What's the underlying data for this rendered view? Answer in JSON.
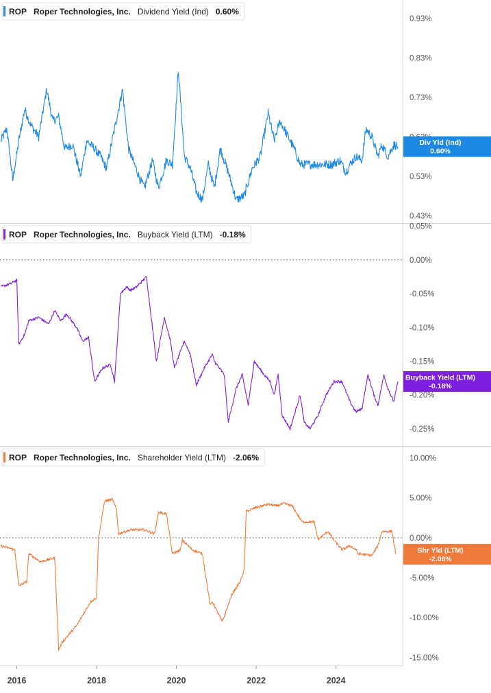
{
  "x_axis": {
    "tick_labels": [
      "2016",
      "2018",
      "2020",
      "2022",
      "2024"
    ],
    "tick_years": [
      2016,
      2018,
      2020,
      2022,
      2024
    ],
    "range_years": [
      2015.58,
      2025.67
    ]
  },
  "chart_data": [
    {
      "type": "line",
      "legend": {
        "ticker": "ROP",
        "company": "Roper Technologies, Inc.",
        "metric": "Dividend Yield (Ind)",
        "value": "0.60%"
      },
      "color": "#1E88E5",
      "ylim": [
        0.4114,
        0.9767
      ],
      "y_ticks": [
        0.93,
        0.83,
        0.73,
        0.63,
        0.53,
        0.43
      ],
      "y_tick_labels": [
        "0.93%",
        "0.83%",
        "0.73%",
        "0.63%",
        "0.53%",
        "0.43%"
      ],
      "zero_line": false,
      "end_badge": {
        "label": "Div Yld (Ind)",
        "value": "0.60%",
        "y": 0.605
      },
      "series": [
        {
          "x": [
            2015.6,
            2015.75,
            2015.9,
            2016.05,
            2016.2,
            2016.35,
            2016.55,
            2016.75,
            2016.9,
            2017.05,
            2017.2,
            2017.4,
            2017.6,
            2017.75,
            2017.95,
            2018.1,
            2018.25,
            2018.45,
            2018.65,
            2018.8,
            2018.95,
            2019.1,
            2019.2,
            2019.4,
            2019.55,
            2019.75,
            2019.9,
            2020.05,
            2020.2,
            2020.35,
            2020.5,
            2020.65,
            2020.8,
            2020.95,
            2021.1,
            2021.3,
            2021.5,
            2021.7,
            2021.9,
            2022.1,
            2022.3,
            2022.45,
            2022.6,
            2022.75,
            2022.95,
            2023.1,
            2023.3,
            2023.5,
            2023.7,
            2023.9,
            2024.1,
            2024.25,
            2024.35,
            2024.5,
            2024.65,
            2024.75,
            2024.9,
            2025.05,
            2025.15,
            2025.3,
            2025.45,
            2025.55
          ],
          "y": [
            0.62,
            0.65,
            0.52,
            0.62,
            0.7,
            0.66,
            0.63,
            0.75,
            0.67,
            0.68,
            0.6,
            0.61,
            0.53,
            0.62,
            0.6,
            0.58,
            0.55,
            0.65,
            0.75,
            0.6,
            0.56,
            0.52,
            0.5,
            0.57,
            0.5,
            0.57,
            0.56,
            0.8,
            0.58,
            0.55,
            0.49,
            0.47,
            0.56,
            0.5,
            0.6,
            0.54,
            0.47,
            0.48,
            0.55,
            0.58,
            0.69,
            0.62,
            0.67,
            0.64,
            0.6,
            0.56,
            0.56,
            0.56,
            0.56,
            0.56,
            0.57,
            0.54,
            0.56,
            0.58,
            0.57,
            0.65,
            0.63,
            0.58,
            0.61,
            0.58,
            0.61,
            0.605
          ]
        }
      ]
    },
    {
      "type": "line",
      "legend": {
        "ticker": "ROP",
        "company": "Roper Technologies, Inc.",
        "metric": "Buyback Yield (LTM)",
        "value": "-0.18%"
      },
      "color": "#7C1FE0",
      "ylim": [
        -0.2754,
        0.0546
      ],
      "y_ticks": [
        0.05,
        0.0,
        -0.05,
        -0.1,
        -0.15,
        -0.2,
        -0.25
      ],
      "y_tick_labels": [
        "0.05%",
        "0.00%",
        "-0.05%",
        "-0.10%",
        "-0.15%",
        "-0.20%",
        "-0.25%"
      ],
      "zero_line": true,
      "end_badge": {
        "label": "Buyback Yield (LTM)",
        "value": "-0.18%",
        "y": -0.18
      },
      "series": [
        {
          "x": [
            2015.6,
            2015.85,
            2016.0,
            2016.05,
            2016.2,
            2016.3,
            2016.55,
            2016.8,
            2016.95,
            2017.1,
            2017.25,
            2017.5,
            2017.65,
            2017.8,
            2017.95,
            2018.15,
            2018.35,
            2018.45,
            2018.6,
            2018.75,
            2018.85,
            2019.0,
            2019.25,
            2019.5,
            2019.7,
            2019.85,
            2019.95,
            2020.2,
            2020.35,
            2020.5,
            2020.7,
            2020.9,
            2020.95,
            2021.2,
            2021.3,
            2021.5,
            2021.65,
            2021.8,
            2021.95,
            2022.2,
            2022.35,
            2022.45,
            2022.55,
            2022.65,
            2022.85,
            2023.1,
            2023.2,
            2023.35,
            2023.55,
            2023.75,
            2023.95,
            2024.15,
            2024.35,
            2024.5,
            2024.65,
            2024.8,
            2024.95,
            2025.05,
            2025.2,
            2025.3,
            2025.45,
            2025.55
          ],
          "y": [
            -0.04,
            -0.035,
            -0.03,
            -0.125,
            -0.11,
            -0.09,
            -0.085,
            -0.095,
            -0.075,
            -0.09,
            -0.08,
            -0.1,
            -0.12,
            -0.115,
            -0.18,
            -0.16,
            -0.155,
            -0.18,
            -0.05,
            -0.04,
            -0.045,
            -0.04,
            -0.025,
            -0.15,
            -0.085,
            -0.12,
            -0.16,
            -0.12,
            -0.14,
            -0.185,
            -0.16,
            -0.14,
            -0.15,
            -0.17,
            -0.24,
            -0.19,
            -0.17,
            -0.215,
            -0.15,
            -0.17,
            -0.18,
            -0.2,
            -0.17,
            -0.23,
            -0.25,
            -0.2,
            -0.24,
            -0.25,
            -0.23,
            -0.2,
            -0.18,
            -0.18,
            -0.21,
            -0.225,
            -0.22,
            -0.17,
            -0.2,
            -0.215,
            -0.17,
            -0.19,
            -0.21,
            -0.18
          ]
        }
      ]
    },
    {
      "type": "line",
      "legend": {
        "ticker": "ROP",
        "company": "Roper Technologies, Inc.",
        "metric": "Shareholder Yield (LTM)",
        "value": "-2.06%"
      },
      "color": "#F07A3A",
      "ylim": [
        -16.0,
        11.5
      ],
      "y_ticks": [
        10.0,
        5.0,
        0.0,
        -5.0,
        -10.0,
        -15.0
      ],
      "y_tick_labels": [
        "10.00%",
        "5.00%",
        "0.00%",
        "-5.00%",
        "-10.00%",
        "-15.00%"
      ],
      "zero_line": true,
      "end_badge": {
        "label": "Shr Yld (LTM)",
        "value": "-2.06%",
        "y": -2.06
      },
      "series": [
        {
          "x": [
            2015.6,
            2015.95,
            2016.05,
            2016.25,
            2016.3,
            2016.6,
            2016.95,
            2017.05,
            2017.15,
            2017.5,
            2017.85,
            2018.0,
            2018.05,
            2018.2,
            2018.4,
            2018.5,
            2018.55,
            2018.85,
            2019.2,
            2019.45,
            2019.55,
            2019.75,
            2019.9,
            2020.1,
            2020.15,
            2020.4,
            2020.65,
            2020.85,
            2020.9,
            2021.15,
            2021.4,
            2021.6,
            2021.7,
            2021.75,
            2022.0,
            2022.3,
            2022.5,
            2022.7,
            2022.9,
            2023.15,
            2023.45,
            2023.55,
            2023.8,
            2023.95,
            2024.15,
            2024.35,
            2024.5,
            2024.55,
            2024.9,
            2025.05,
            2025.15,
            2025.4,
            2025.5
          ],
          "y": [
            -1.0,
            -1.5,
            -6.0,
            -5.5,
            -2.0,
            -3.0,
            -2.5,
            -14.0,
            -13.0,
            -11.0,
            -8.0,
            -7.5,
            0.0,
            4.6,
            4.8,
            3.5,
            0.5,
            1.0,
            1.0,
            0.5,
            3.2,
            3.0,
            -2.0,
            -1.5,
            -0.3,
            -1.5,
            -2.0,
            -8.5,
            -8.0,
            -10.5,
            -7.0,
            -5.5,
            -4.0,
            3.3,
            3.8,
            4.2,
            4.0,
            4.3,
            4.0,
            2.0,
            2.0,
            -0.2,
            0.8,
            -0.3,
            -1.5,
            -1.0,
            -1.5,
            -2.0,
            -2.2,
            -1.0,
            0.8,
            0.8,
            -2.06
          ]
        }
      ]
    }
  ]
}
